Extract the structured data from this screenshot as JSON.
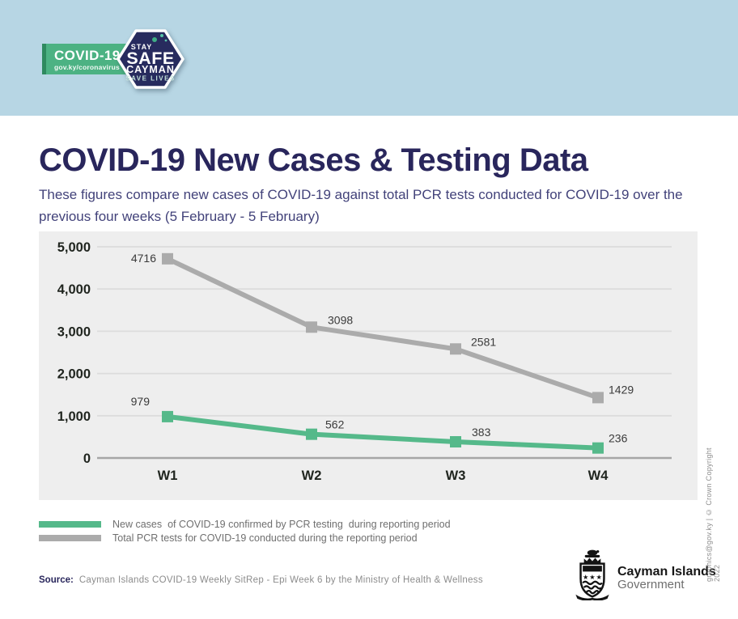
{
  "colors": {
    "banner-bg": "#b7d6e4",
    "ribbon-green": "#4cb283",
    "ribbon-edge": "#2e8a5f",
    "badge-navy": "#272b5e",
    "brand-navy": "#29265c",
    "subtitle-navy": "#42427a",
    "panel-bg": "#eeeeee",
    "case-green": "#55b98a",
    "test-gray": "#ababab"
  },
  "banner": {
    "ribbon_title": "COVID-19",
    "ribbon_url": "gov.ky/coronavirus",
    "badge_stay": "STAY",
    "badge_safe": "SAFE",
    "badge_cayman": "CAYMAN",
    "badge_save_lives": "SAVE LIVES"
  },
  "header": {
    "title": "COVID-19 New Cases & Testing Data",
    "subtitle": "These figures compare new cases of COVID-19 against total PCR tests conducted for COVID-19 over the previous four weeks (5 February - 5 February)"
  },
  "chart_data": {
    "type": "line",
    "categories": [
      "W1",
      "W2",
      "W3",
      "W4"
    ],
    "series": [
      {
        "name": "New cases of COVID-19 confirmed by PCR testing during reporting period",
        "values": [
          979,
          562,
          383,
          236
        ],
        "color": "#55b98a",
        "marker": "square"
      },
      {
        "name": "Total PCR tests for COVID-19 conducted during the reporting period",
        "values": [
          4716,
          3098,
          2581,
          1429
        ],
        "color": "#ababab",
        "marker": "square"
      }
    ],
    "title": "",
    "xlabel": "",
    "ylabel": "",
    "ylim": [
      0,
      5000
    ],
    "ytick_values": [
      5000,
      4000,
      3000,
      2000,
      1000,
      0
    ],
    "grid": true,
    "data_labels": true,
    "legend_position": "bottom-left"
  },
  "legend": {
    "items": [
      {
        "label": "New cases  of COVID-19 confirmed by PCR testing  during reporting period"
      },
      {
        "label": "Total PCR tests for COVID-19 conducted during the reporting period"
      }
    ]
  },
  "footer": {
    "source_label": "Source:",
    "source_text": "Cayman Islands COVID-19 Weekly SitRep - Epi Week 6 by the Ministry of Health & Wellness",
    "gov_name": "Cayman Islands",
    "gov_sub": "Government",
    "credit_vertical": "graphics@gov.ky | © Crown Copyright 2022"
  }
}
